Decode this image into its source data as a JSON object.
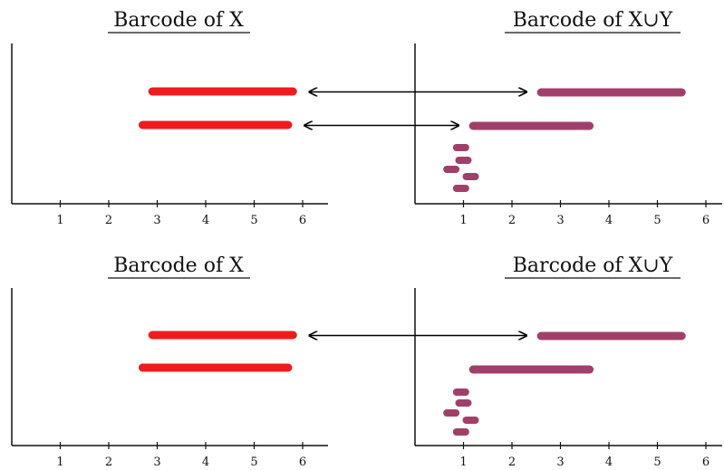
{
  "panels": [
    {
      "id": "top-left",
      "title": "Barcode of X",
      "bar_color": "#ee1c1c",
      "ticks": [
        "1",
        "2",
        "3",
        "4",
        "5",
        "6"
      ],
      "bars": [
        [
          2.9,
          5.8
        ],
        [
          2.7,
          5.7
        ]
      ]
    },
    {
      "id": "top-right",
      "title": "Barcode of X∪Y",
      "bar_color": "#a0406a",
      "ticks": [
        "1",
        "2",
        "3",
        "4",
        "5",
        "6"
      ],
      "bars": [
        [
          2.6,
          5.5
        ],
        [
          1.2,
          3.6
        ],
        [
          0.9,
          1.0
        ],
        [
          1.0,
          1.0
        ],
        [
          0.7,
          0.8
        ],
        [
          1.1,
          1.2
        ],
        [
          0.9,
          1.0
        ]
      ]
    },
    {
      "id": "bottom-left",
      "title": "Barcode of X",
      "bar_color": "#ee1c1c",
      "ticks": [
        "1",
        "2",
        "3",
        "4",
        "5",
        "6"
      ],
      "bars": [
        [
          2.9,
          5.8
        ],
        [
          2.7,
          5.7
        ]
      ]
    },
    {
      "id": "bottom-right",
      "title": "Barcode of X∪Y",
      "bar_color": "#a0406a",
      "ticks": [
        "1",
        "2",
        "3",
        "4",
        "5",
        "6"
      ],
      "bars": [
        [
          2.6,
          5.5
        ],
        [
          1.2,
          3.6
        ],
        [
          0.9,
          1.0
        ],
        [
          1.0,
          1.0
        ],
        [
          0.7,
          0.8
        ],
        [
          1.1,
          1.2
        ],
        [
          0.9,
          1.0
        ]
      ]
    }
  ],
  "arrows": [
    {
      "row": "top",
      "from_bar": 0,
      "to_bar": 0
    },
    {
      "row": "top",
      "from_bar": 1,
      "to_bar": 1
    },
    {
      "row": "bottom",
      "from_bar": 0,
      "to_bar": 0
    }
  ]
}
